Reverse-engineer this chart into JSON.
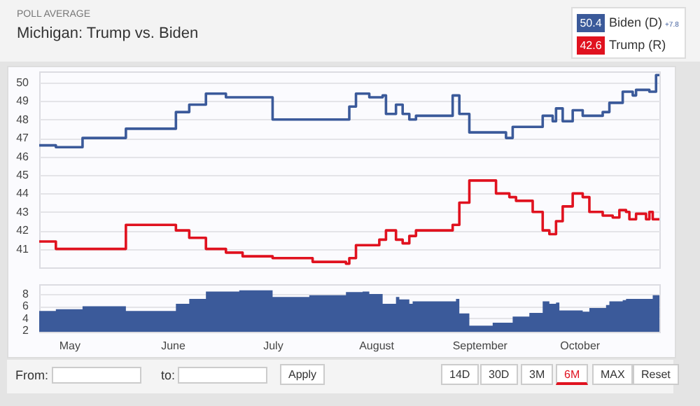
{
  "chart_data": [
    {
      "type": "step",
      "subtitle": "POLL AVERAGE",
      "title": "Michigan: Trump vs. Biden",
      "legend": "top right",
      "grid": "y",
      "tick_labels": "y",
      "xlim": [
        "--04-22",
        "--10-25"
      ],
      "ylim": [
        40,
        50.6
      ],
      "yticks": [
        41,
        42,
        43,
        44,
        45,
        46,
        47,
        48,
        49,
        50
      ],
      "annotations": [
        "50.4",
        "42.6",
        "+7.8",
        "From:",
        "to:",
        "Apply",
        "14D",
        "30D",
        "3M",
        "6M",
        "MAX",
        "Reset"
      ],
      "series": [
        {
          "name": "Biden (D)",
          "color": "#3b5a9a",
          "x": [
            "--04-22",
            "--04-27",
            "--05-05",
            "--05-18",
            "--06-02",
            "--06-06",
            "--06-11",
            "--06-17",
            "--07-01",
            "--07-24",
            "--07-26",
            "--07-30",
            "--08-03",
            "--08-04",
            "--08-07",
            "--08-09",
            "--08-11",
            "--08-13",
            "--08-24",
            "--08-26",
            "--08-29",
            "--09-09",
            "--09-11",
            "--09-20",
            "--09-23",
            "--09-24",
            "--09-26",
            "--09-29",
            "--10-02",
            "--10-08",
            "--10-10",
            "--10-14",
            "--10-17",
            "--10-18",
            "--10-22",
            "--10-24",
            "--10-25"
          ],
          "values": [
            46.6,
            46.5,
            47.0,
            47.5,
            48.4,
            48.8,
            49.4,
            49.2,
            48.0,
            48.7,
            49.4,
            49.2,
            49.3,
            48.3,
            48.8,
            48.3,
            48.0,
            48.2,
            49.3,
            48.3,
            47.3,
            47.0,
            47.6,
            48.2,
            47.9,
            48.6,
            47.9,
            48.5,
            48.2,
            48.4,
            48.9,
            49.5,
            49.3,
            49.6,
            49.5,
            50.4,
            50.4
          ]
        },
        {
          "name": "Trump (R)",
          "color": "#e0121f",
          "x": [
            "--04-22",
            "--04-27",
            "--05-18",
            "--06-02",
            "--06-06",
            "--06-11",
            "--06-17",
            "--06-22",
            "--07-01",
            "--07-13",
            "--07-23",
            "--07-24",
            "--07-26",
            "--08-02",
            "--08-04",
            "--08-07",
            "--08-09",
            "--08-11",
            "--08-13",
            "--08-24",
            "--08-26",
            "--08-29",
            "--09-06",
            "--09-10",
            "--09-12",
            "--09-17",
            "--09-20",
            "--09-22",
            "--09-24",
            "--09-26",
            "--09-29",
            "--10-02",
            "--10-04",
            "--10-08",
            "--10-11",
            "--10-13",
            "--10-15",
            "--10-16",
            "--10-18",
            "--10-21",
            "--10-22",
            "--10-23",
            "--10-25"
          ],
          "values": [
            41.4,
            41.0,
            42.3,
            42.0,
            41.6,
            41.0,
            40.8,
            40.6,
            40.5,
            40.3,
            40.2,
            40.5,
            41.2,
            41.5,
            42.0,
            41.5,
            41.3,
            41.7,
            42.0,
            42.3,
            43.5,
            44.7,
            44.0,
            43.8,
            43.6,
            43.0,
            42.0,
            41.8,
            42.5,
            43.3,
            44.0,
            43.8,
            43.0,
            42.8,
            42.7,
            43.1,
            43.0,
            42.6,
            42.9,
            42.6,
            43.0,
            42.6,
            42.6
          ]
        }
      ]
    },
    {
      "type": "area",
      "color": "#3b5a9a",
      "grid": "y",
      "xlim": [
        "--04-22",
        "--10-25"
      ],
      "ylim": [
        1.8,
        9.6
      ],
      "yticks": [
        2,
        4,
        6,
        8
      ],
      "xticks": [
        {
          "value": "--05-01",
          "label": "May"
        },
        {
          "value": "--06-01",
          "label": "June"
        },
        {
          "value": "--07-01",
          "label": "July"
        },
        {
          "value": "--08-01",
          "label": "August"
        },
        {
          "value": "--09-01",
          "label": "September"
        },
        {
          "value": "--10-01",
          "label": "October"
        }
      ],
      "x": [
        "--04-22",
        "--04-27",
        "--05-05",
        "--05-18",
        "--06-02",
        "--06-06",
        "--06-11",
        "--06-21",
        "--07-01",
        "--07-12",
        "--07-23",
        "--07-28",
        "--07-30",
        "--08-03",
        "--08-07",
        "--08-08",
        "--08-11",
        "--08-12",
        "--08-25",
        "--08-26",
        "--08-29",
        "--09-05",
        "--09-11",
        "--09-16",
        "--09-20",
        "--09-22",
        "--09-24",
        "--09-25",
        "--10-02",
        "--10-04",
        "--10-09",
        "--10-10",
        "--10-14",
        "--10-15",
        "--10-23",
        "--10-25"
      ],
      "values": [
        5.2,
        5.5,
        6.0,
        5.2,
        6.4,
        7.2,
        8.4,
        8.6,
        7.5,
        7.8,
        8.3,
        8.4,
        8.0,
        6.4,
        7.5,
        7.1,
        6.4,
        6.8,
        7.2,
        4.8,
        2.8,
        3.3,
        4.3,
        4.9,
        6.8,
        6.4,
        6.6,
        5.3,
        5.1,
        5.7,
        6.2,
        6.8,
        7.0,
        7.2,
        7.8,
        7.8
      ]
    }
  ]
}
